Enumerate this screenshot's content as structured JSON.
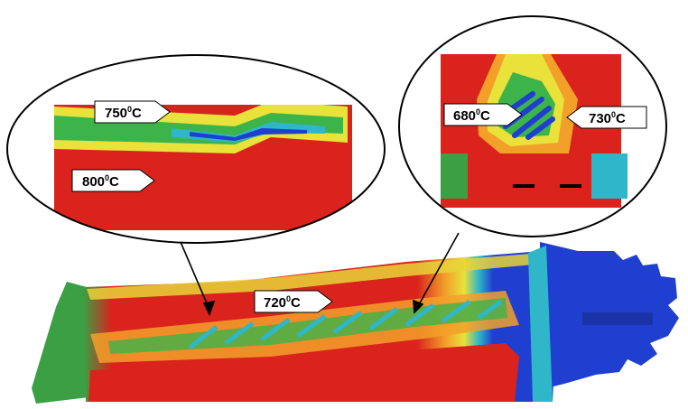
{
  "labels": {
    "zoom_left_top": {
      "value": "750",
      "deg": "0",
      "unit": "C"
    },
    "zoom_left_bottom": {
      "value": "800",
      "deg": "0",
      "unit": "C"
    },
    "zoom_right_left": {
      "value": "680",
      "deg": "0",
      "unit": "C"
    },
    "zoom_right_right": {
      "value": "730",
      "deg": "0",
      "unit": "C"
    },
    "blade_mid": {
      "value": "720",
      "deg": "0",
      "unit": "C"
    }
  },
  "colors": {
    "hot": "#d9231c",
    "orange": "#f2a02a",
    "yellow": "#e8e23a",
    "green": "#3cb44a",
    "cyan": "#2fb6c8",
    "blue": "#1f3fd0",
    "background": "#ffffff"
  }
}
